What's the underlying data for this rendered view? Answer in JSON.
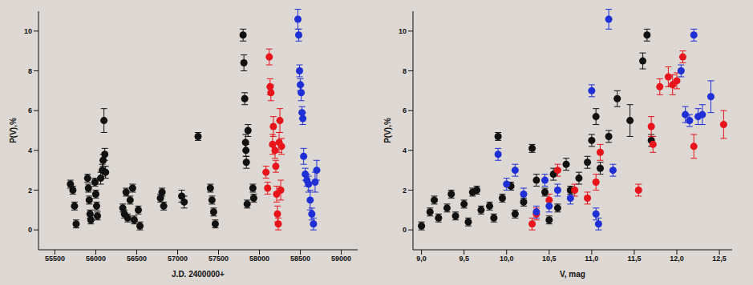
{
  "chart_data": [
    {
      "type": "scatter",
      "x_label": "J.D. 2400000+",
      "y_label": "P(V),%",
      "xlim": [
        55300,
        59200
      ],
      "ylim": [
        -1,
        11
      ],
      "xticks": [
        55500,
        56000,
        56500,
        57000,
        57500,
        58000,
        58500,
        59000
      ],
      "yticks": [
        0,
        2,
        4,
        6,
        8,
        10
      ],
      "marker": "circle",
      "series": [
        {
          "color": "#111111",
          "x": [
            55690,
            55720,
            55740,
            55760,
            55900,
            55910,
            55920,
            55930,
            55940,
            55990,
            56000,
            56010,
            56020,
            56060,
            56080,
            56090,
            56100,
            56110,
            56120,
            56330,
            56350,
            56370,
            56390,
            56420,
            56450,
            56470,
            56520,
            56540,
            56790,
            56810,
            56830,
            57050,
            57080,
            57250,
            57400,
            57420,
            57440,
            57460,
            57800,
            57810,
            57820,
            57830,
            57835,
            57840,
            57850,
            57860,
            57920,
            57930
          ],
          "values": [
            2.3,
            2.0,
            1.2,
            0.3,
            2.6,
            2.1,
            1.5,
            0.8,
            0.5,
            2.4,
            1.8,
            1.2,
            0.7,
            2.6,
            3.0,
            3.5,
            5.5,
            3.8,
            2.9,
            1.1,
            0.8,
            1.9,
            0.6,
            1.5,
            2.1,
            0.5,
            1.0,
            0.2,
            1.6,
            1.9,
            1.2,
            1.7,
            1.4,
            4.7,
            2.1,
            1.5,
            0.9,
            0.3,
            9.8,
            8.4,
            6.6,
            4.4,
            4.0,
            3.4,
            1.3,
            5.0,
            2.1,
            1.6
          ],
          "errors": [
            0.2,
            0.2,
            0.2,
            0.2,
            0.2,
            0.2,
            0.2,
            0.2,
            0.2,
            0.2,
            0.2,
            0.2,
            0.2,
            0.3,
            0.3,
            0.3,
            0.6,
            0.3,
            0.3,
            0.2,
            0.2,
            0.2,
            0.2,
            0.2,
            0.2,
            0.2,
            0.2,
            0.2,
            0.2,
            0.2,
            0.2,
            0.3,
            0.3,
            0.2,
            0.2,
            0.2,
            0.2,
            0.2,
            0.3,
            0.4,
            0.3,
            0.4,
            0.3,
            0.3,
            0.2,
            0.3,
            0.2,
            0.2
          ]
        },
        {
          "color": "#e8141c",
          "x": [
            58080,
            58100,
            58120,
            58130,
            58140,
            58160,
            58170,
            58190,
            58200,
            58210,
            58220,
            58230,
            58240,
            58250,
            58260,
            58270
          ],
          "values": [
            2.9,
            2.1,
            8.7,
            7.2,
            6.9,
            4.3,
            5.2,
            4.0,
            3.2,
            1.8,
            0.8,
            0.3,
            4.4,
            5.5,
            2.0,
            4.2
          ],
          "errors": [
            0.3,
            0.3,
            0.4,
            0.4,
            0.4,
            0.5,
            0.5,
            0.4,
            0.3,
            0.4,
            0.4,
            0.3,
            0.5,
            0.6,
            0.5,
            0.4
          ]
        },
        {
          "color": "#1f2fd6",
          "x": [
            58470,
            58480,
            58490,
            58500,
            58510,
            58520,
            58530,
            58540,
            58560,
            58580,
            58600,
            58620,
            58640,
            58660,
            58680,
            58700
          ],
          "values": [
            10.6,
            9.8,
            8.0,
            7.3,
            6.9,
            5.9,
            5.6,
            3.7,
            2.8,
            2.5,
            2.3,
            1.5,
            0.8,
            0.3,
            2.4,
            3.0
          ],
          "errors": [
            0.5,
            0.3,
            0.3,
            0.3,
            0.4,
            0.3,
            0.3,
            0.4,
            0.3,
            0.3,
            0.4,
            0.5,
            0.3,
            0.3,
            0.5,
            0.5
          ]
        }
      ]
    },
    {
      "type": "scatter",
      "x_label": "V, mag",
      "y_label": "P(V),%",
      "xlim": [
        8.9,
        12.65
      ],
      "ylim": [
        -1,
        11
      ],
      "xticks": [
        {
          "value": 9.0,
          "label": "9,0"
        },
        {
          "value": 9.5,
          "label": "9,5"
        },
        {
          "value": 10.0,
          "label": "10,0"
        },
        {
          "value": 10.5,
          "label": "10,5"
        },
        {
          "value": 11.0,
          "label": "11,0"
        },
        {
          "value": 11.5,
          "label": "11,5"
        },
        {
          "value": 12.0,
          "label": "12,0"
        },
        {
          "value": 12.5,
          "label": "12,5"
        }
      ],
      "yticks": [
        0,
        2,
        4,
        6,
        8,
        10
      ],
      "marker": "circle",
      "series": [
        {
          "color": "#111111",
          "x": [
            9.0,
            9.1,
            9.15,
            9.2,
            9.3,
            9.35,
            9.4,
            9.5,
            9.55,
            9.6,
            9.65,
            9.7,
            9.8,
            9.85,
            9.9,
            9.95,
            10.05,
            10.1,
            10.2,
            10.3,
            10.35,
            10.45,
            10.5,
            10.55,
            10.6,
            10.7,
            10.75,
            10.85,
            10.95,
            11.0,
            11.05,
            11.1,
            11.2,
            11.3,
            11.45,
            11.6,
            11.65,
            11.7
          ],
          "values": [
            0.2,
            0.9,
            1.5,
            0.6,
            1.1,
            1.8,
            0.7,
            1.3,
            0.4,
            1.9,
            2.0,
            1.0,
            1.2,
            0.6,
            4.7,
            1.6,
            2.2,
            0.8,
            1.4,
            4.1,
            2.5,
            1.9,
            0.5,
            2.8,
            1.1,
            3.3,
            2.0,
            2.6,
            3.4,
            4.5,
            5.7,
            3.1,
            4.7,
            6.6,
            5.5,
            8.5,
            9.8,
            4.5
          ],
          "errors": [
            0.2,
            0.2,
            0.2,
            0.2,
            0.2,
            0.2,
            0.2,
            0.2,
            0.2,
            0.2,
            0.2,
            0.2,
            0.2,
            0.2,
            0.2,
            0.2,
            0.2,
            0.2,
            0.2,
            0.2,
            0.3,
            0.2,
            0.2,
            0.3,
            0.2,
            0.3,
            0.2,
            0.3,
            0.3,
            0.3,
            0.4,
            0.3,
            0.3,
            0.4,
            0.8,
            0.4,
            0.3,
            0.3
          ]
        },
        {
          "color": "#e8141c",
          "x": [
            10.3,
            10.35,
            10.5,
            10.6,
            10.8,
            10.95,
            11.05,
            11.1,
            11.55,
            11.7,
            11.72,
            11.8,
            11.9,
            11.95,
            12.0,
            12.07,
            12.2,
            12.55
          ],
          "values": [
            0.3,
            0.8,
            1.5,
            3.0,
            2.0,
            1.6,
            2.4,
            3.9,
            2.0,
            5.2,
            4.3,
            7.2,
            7.7,
            7.3,
            7.5,
            8.7,
            4.2,
            5.3
          ],
          "errors": [
            0.3,
            0.3,
            0.3,
            0.3,
            0.3,
            0.3,
            0.4,
            0.4,
            0.3,
            0.5,
            0.4,
            0.4,
            0.5,
            0.5,
            0.4,
            0.3,
            0.6,
            0.7
          ]
        },
        {
          "color": "#1f2fd6",
          "x": [
            9.9,
            10.0,
            10.1,
            10.2,
            10.35,
            10.45,
            10.5,
            10.6,
            10.75,
            11.0,
            11.05,
            11.08,
            11.2,
            11.25,
            12.05,
            12.1,
            12.15,
            12.2,
            12.25,
            12.3,
            12.4
          ],
          "values": [
            3.8,
            2.3,
            3.0,
            1.8,
            0.9,
            2.5,
            1.2,
            2.0,
            1.6,
            7.0,
            0.8,
            0.3,
            10.6,
            3.0,
            8.0,
            5.8,
            5.5,
            9.8,
            5.7,
            5.8,
            6.7
          ],
          "errors": [
            0.3,
            0.3,
            0.3,
            0.3,
            0.3,
            0.3,
            0.3,
            0.3,
            0.3,
            0.3,
            0.3,
            0.3,
            0.5,
            0.3,
            0.3,
            0.4,
            0.3,
            0.3,
            0.4,
            0.5,
            0.8
          ]
        }
      ]
    }
  ]
}
